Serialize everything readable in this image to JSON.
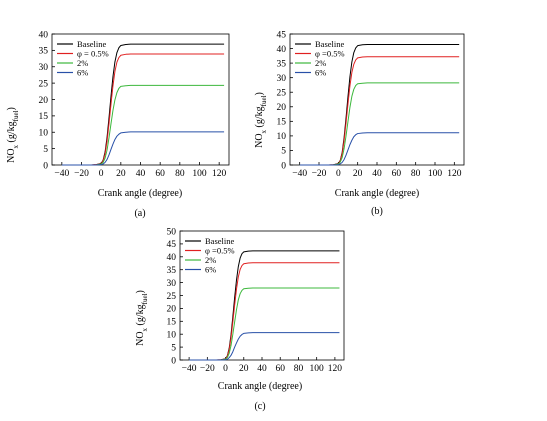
{
  "colors": {
    "Baseline": "#000000",
    "φ=0.5%": "#e02020",
    "2%": "#3cb83c",
    "6%": "#2850a8"
  },
  "chart_data": [
    {
      "type": "line",
      "panel_label": "(a)",
      "xlabel": "Crank angle (degree)",
      "ylabel": "NOx (g/kgfuel)",
      "xlim": [
        -50,
        130
      ],
      "ylim": [
        0,
        40
      ],
      "xticks": [
        -40,
        -20,
        0,
        20,
        40,
        60,
        80,
        100,
        120
      ],
      "yticks": [
        0,
        5,
        10,
        15,
        20,
        25,
        30,
        35,
        40
      ],
      "grid": false,
      "legend_position": "top-left",
      "x": [
        -40,
        -20,
        -10,
        -5,
        0,
        2,
        4,
        6,
        8,
        10,
        12,
        14,
        16,
        18,
        20,
        25,
        30,
        40,
        60,
        80,
        100,
        125
      ],
      "series": [
        {
          "name": "Baseline",
          "legend_label": "Baseline",
          "values": [
            0,
            0,
            0,
            0.1,
            0.5,
            1.5,
            4,
            8.5,
            14.5,
            21,
            27,
            31.5,
            34.3,
            35.8,
            36.5,
            36.8,
            36.9,
            36.9,
            36.9,
            36.9,
            36.9,
            36.9
          ]
        },
        {
          "name": "φ=0.5%",
          "legend_label": "φ = 0.5%",
          "values": [
            0,
            0,
            0,
            0.1,
            0.4,
            1.3,
            3.4,
            7.3,
            12.7,
            18.6,
            24.2,
            28.6,
            31.4,
            32.8,
            33.5,
            33.8,
            33.9,
            33.9,
            33.9,
            33.9,
            33.9,
            33.9
          ]
        },
        {
          "name": "2%",
          "legend_label": "2%",
          "values": [
            0,
            0,
            0,
            0.05,
            0.3,
            0.8,
            2.1,
            4.6,
            8.4,
            12.6,
            16.7,
            19.9,
            22.1,
            23.4,
            24.0,
            24.2,
            24.3,
            24.3,
            24.3,
            24.3,
            24.3,
            24.3
          ]
        },
        {
          "name": "6%",
          "legend_label": "6%",
          "values": [
            0,
            0,
            0,
            0,
            0.1,
            0.3,
            0.8,
            1.7,
            3.1,
            4.8,
            6.4,
            7.8,
            8.8,
            9.4,
            9.8,
            10.0,
            10.1,
            10.1,
            10.1,
            10.1,
            10.1,
            10.1
          ]
        }
      ]
    },
    {
      "type": "line",
      "panel_label": "(b)",
      "xlabel": "Crank angle (degree)",
      "ylabel": "NOx (g/kgfuel)",
      "xlim": [
        -50,
        130
      ],
      "ylim": [
        0,
        45
      ],
      "xticks": [
        -40,
        -20,
        0,
        20,
        40,
        60,
        80,
        100,
        120
      ],
      "yticks": [
        0,
        5,
        10,
        15,
        20,
        25,
        30,
        35,
        40,
        45
      ],
      "grid": false,
      "legend_position": "top-left",
      "x": [
        -40,
        -20,
        -10,
        -5,
        0,
        2,
        4,
        6,
        8,
        10,
        12,
        14,
        16,
        18,
        20,
        25,
        30,
        40,
        60,
        80,
        100,
        125
      ],
      "series": [
        {
          "name": "Baseline",
          "legend_label": "Baseline",
          "values": [
            0,
            0,
            0,
            0.1,
            0.5,
            1.6,
            4.4,
            9.5,
            16.3,
            23.6,
            30.3,
            35.4,
            38.6,
            40.2,
            41.0,
            41.3,
            41.4,
            41.4,
            41.4,
            41.4,
            41.4,
            41.4
          ]
        },
        {
          "name": "φ=0.5%",
          "legend_label": "φ =0.5%",
          "values": [
            0,
            0,
            0,
            0.1,
            0.4,
            1.4,
            3.9,
            8.5,
            14.6,
            21.1,
            27.2,
            31.8,
            34.6,
            36.1,
            36.8,
            37.1,
            37.2,
            37.2,
            37.2,
            37.2,
            37.2,
            37.2
          ]
        },
        {
          "name": "2%",
          "legend_label": "2%",
          "values": [
            0,
            0,
            0,
            0.05,
            0.3,
            1.0,
            2.6,
            5.7,
            10.1,
            15.0,
            19.8,
            23.6,
            26.0,
            27.3,
            27.9,
            28.1,
            28.2,
            28.2,
            28.2,
            28.2,
            28.2,
            28.2
          ]
        },
        {
          "name": "6%",
          "legend_label": "6%",
          "values": [
            0,
            0,
            0,
            0,
            0.1,
            0.4,
            0.9,
            1.9,
            3.4,
            5.2,
            7.0,
            8.5,
            9.7,
            10.4,
            10.8,
            11.0,
            11.1,
            11.1,
            11.1,
            11.1,
            11.1,
            11.1
          ]
        }
      ]
    },
    {
      "type": "line",
      "panel_label": "(c)",
      "xlabel": "Crank angle (degree)",
      "ylabel": "NOx (g/kgfuel)",
      "xlim": [
        -50,
        130
      ],
      "ylim": [
        0,
        50
      ],
      "xticks": [
        -40,
        -20,
        0,
        20,
        40,
        60,
        80,
        100,
        120
      ],
      "yticks": [
        0,
        5,
        10,
        15,
        20,
        25,
        30,
        35,
        40,
        45,
        50
      ],
      "grid": false,
      "legend_position": "top-left",
      "x": [
        -40,
        -20,
        -10,
        -5,
        0,
        2,
        4,
        6,
        8,
        10,
        12,
        14,
        16,
        18,
        20,
        25,
        30,
        40,
        60,
        80,
        100,
        125
      ],
      "series": [
        {
          "name": "Baseline",
          "legend_label": "Baseline",
          "values": [
            0,
            0,
            0,
            0.1,
            0.5,
            1.7,
            4.6,
            9.8,
            16.8,
            24.3,
            31.0,
            36.2,
            39.5,
            41.2,
            41.9,
            42.2,
            42.3,
            42.3,
            42.3,
            42.3,
            42.3,
            42.3
          ]
        },
        {
          "name": "φ=0.5%",
          "legend_label": "φ =0.5%",
          "values": [
            0,
            0,
            0,
            0.1,
            0.4,
            1.5,
            4.0,
            8.6,
            14.8,
            21.4,
            27.5,
            32.2,
            35.1,
            36.6,
            37.3,
            37.6,
            37.7,
            37.7,
            37.7,
            37.7,
            37.7,
            37.7
          ]
        },
        {
          "name": "2%",
          "legend_label": "2%",
          "values": [
            0,
            0,
            0,
            0.05,
            0.3,
            1.0,
            2.6,
            5.6,
            10.0,
            14.8,
            19.5,
            23.3,
            25.7,
            27.0,
            27.6,
            27.8,
            27.9,
            27.9,
            27.9,
            27.9,
            27.9,
            27.9
          ]
        },
        {
          "name": "6%",
          "legend_label": "6%",
          "values": [
            0,
            0,
            0,
            0,
            0.1,
            0.3,
            0.9,
            1.8,
            3.2,
            5.0,
            6.6,
            8.1,
            9.2,
            9.9,
            10.3,
            10.5,
            10.6,
            10.6,
            10.6,
            10.6,
            10.6,
            10.6
          ]
        }
      ]
    }
  ]
}
